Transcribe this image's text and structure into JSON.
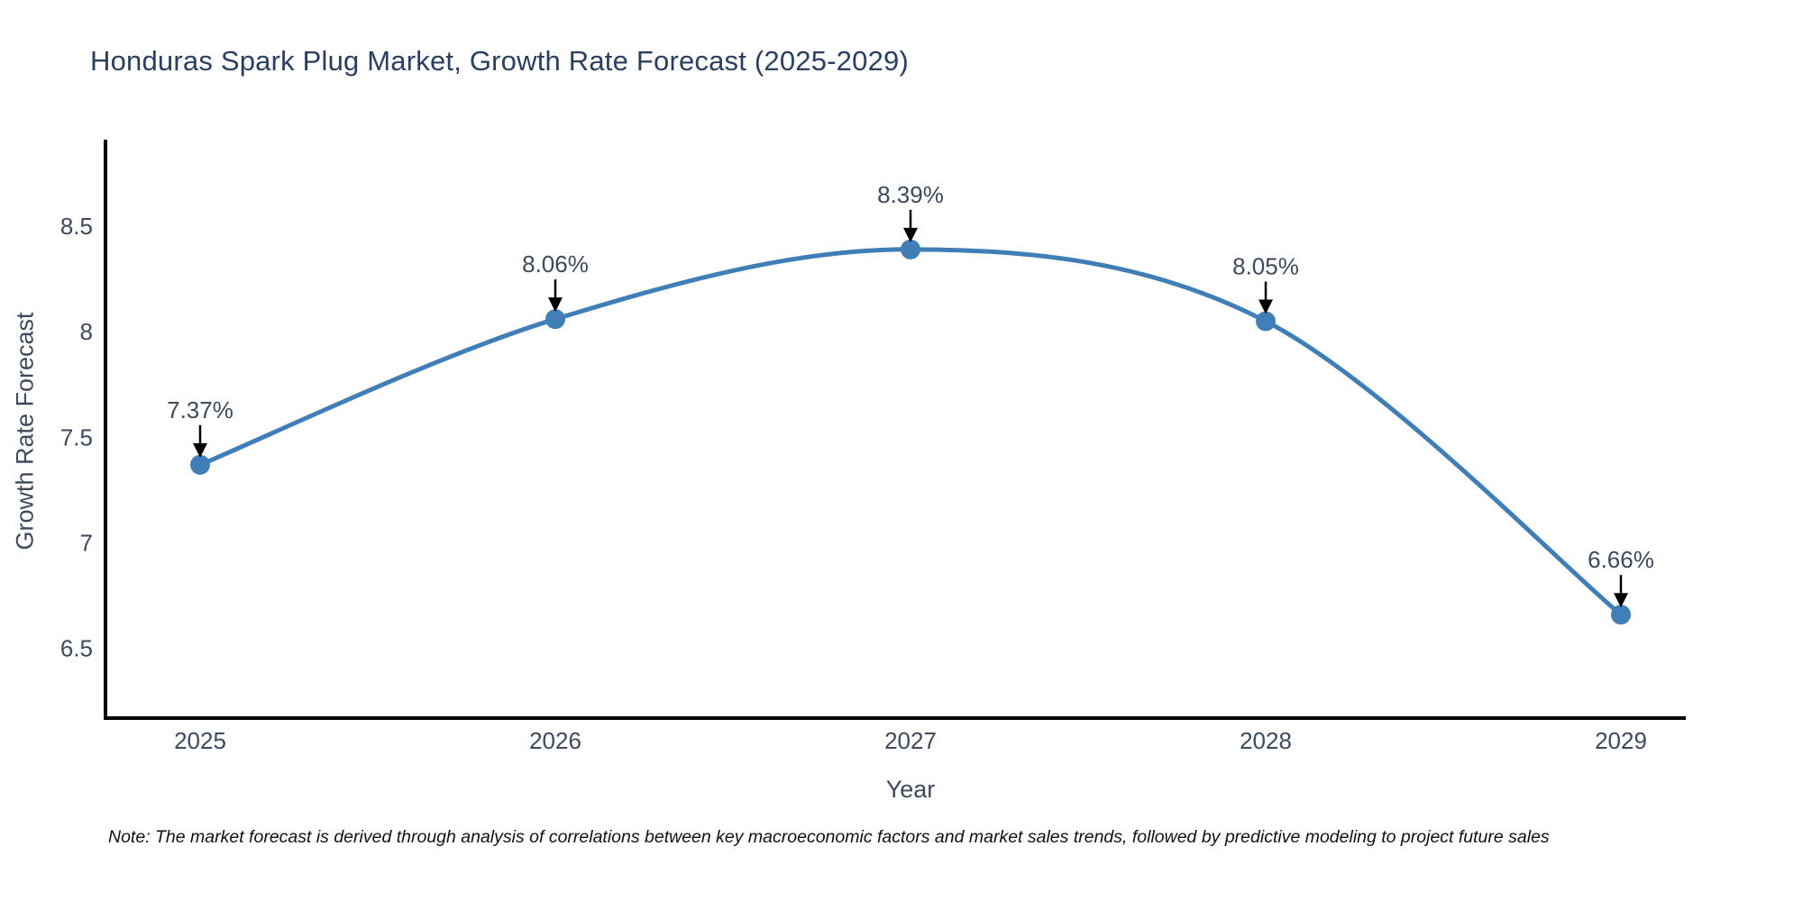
{
  "title": "Honduras Spark Plug Market, Growth Rate Forecast (2025-2029)",
  "footnote": "Note: The market forecast is derived through analysis of correlations between key macroeconomic factors and market sales trends, followed by predictive modeling to project future sales",
  "chart_data": {
    "type": "line",
    "title": "Honduras Spark Plug Market, Growth Rate Forecast (2025-2029)",
    "xlabel": "Year",
    "ylabel": "Growth Rate Forecast",
    "categories": [
      "2025",
      "2026",
      "2027",
      "2028",
      "2029"
    ],
    "values": [
      7.37,
      8.06,
      8.39,
      8.05,
      6.66
    ],
    "point_labels": [
      "7.37%",
      "8.06%",
      "8.39%",
      "8.05%",
      "6.66%"
    ],
    "yticks": [
      6.5,
      7,
      7.5,
      8,
      8.5
    ],
    "ylim": [
      6.17,
      8.91
    ],
    "line_shape": "spline",
    "grid": false,
    "legend": false,
    "colors": {
      "line": "#407eb8",
      "marker": "#407eb8",
      "axis": "#000000",
      "annotation_arrow": "#000000",
      "tick_text": "#3d4a5c",
      "title_text": "#2a3f5f",
      "note_text": "#111111"
    }
  }
}
